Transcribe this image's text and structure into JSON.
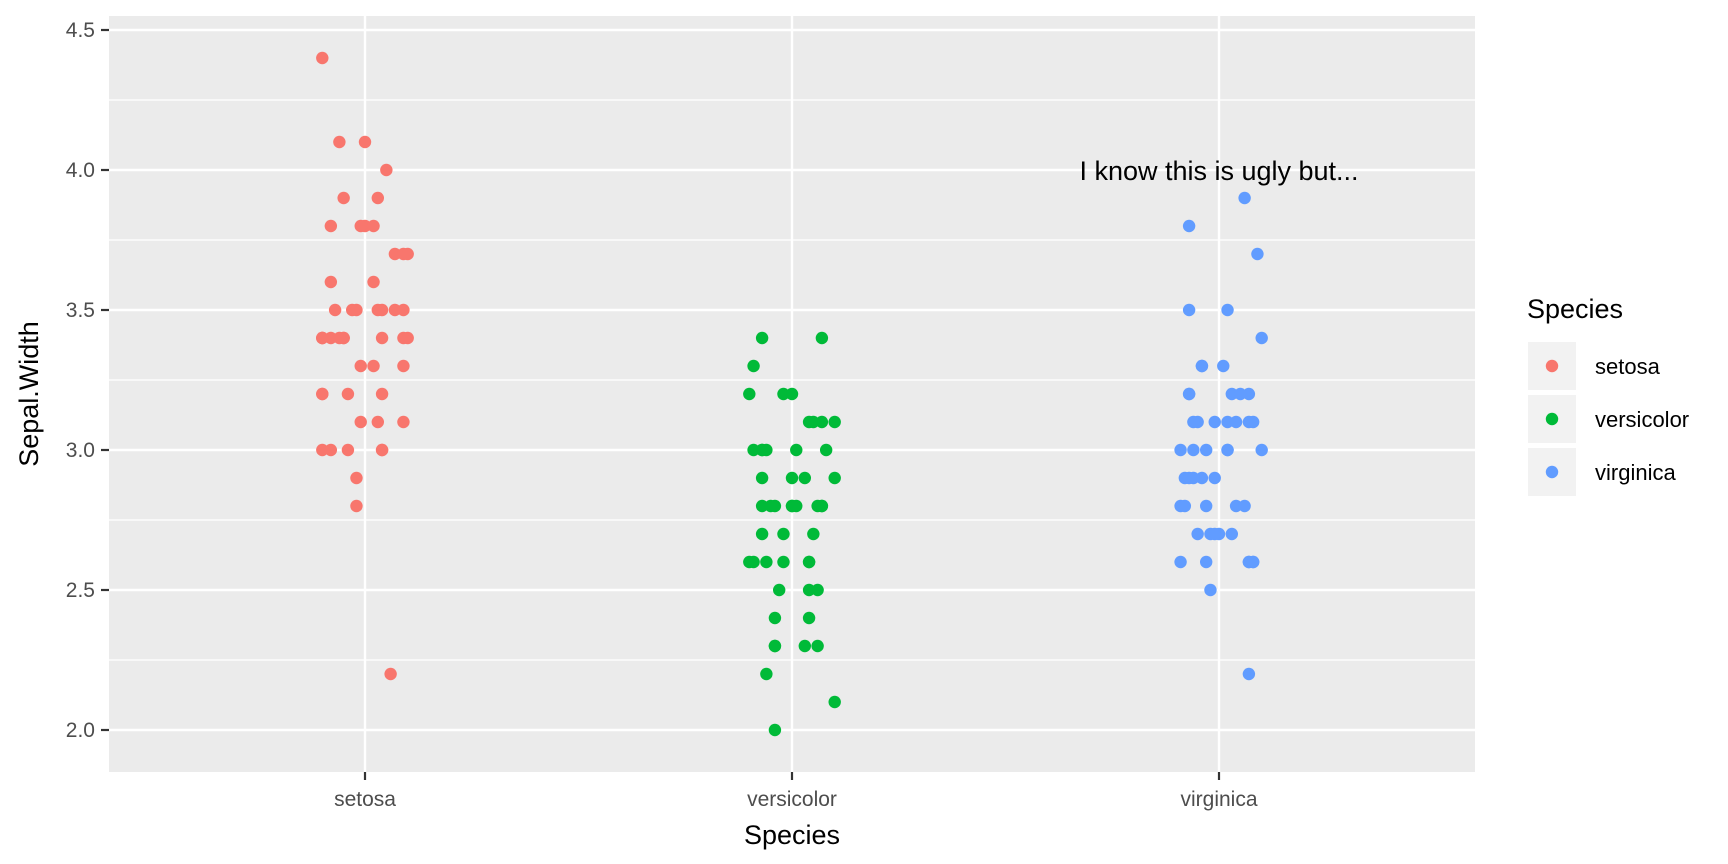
{
  "chart_data": {
    "type": "scatter",
    "subtype": "jitter",
    "title": "",
    "xlabel": "Species",
    "ylabel": "Sepal.Width",
    "categories": [
      "setosa",
      "versicolor",
      "virginica"
    ],
    "ylim": [
      1.85,
      4.55
    ],
    "yticks": [
      2.0,
      2.5,
      3.0,
      3.5,
      4.0,
      4.5
    ],
    "ytick_labels": [
      "2.0",
      "2.5",
      "3.0",
      "3.5",
      "4.0",
      "4.5"
    ],
    "grid": true,
    "legend": {
      "title": "Species",
      "position": "right"
    },
    "annotation": {
      "text": "I know this is ugly but...",
      "x": "virginica",
      "y": 4.0
    },
    "series": [
      {
        "name": "setosa",
        "color": "#F8766D",
        "points": [
          [
            -0.1,
            4.4
          ],
          [
            0.0,
            4.1
          ],
          [
            -0.06,
            4.1
          ],
          [
            0.05,
            4.0
          ],
          [
            -0.05,
            3.9
          ],
          [
            0.03,
            3.9
          ],
          [
            -0.08,
            3.8
          ],
          [
            0.0,
            3.8
          ],
          [
            0.02,
            3.8
          ],
          [
            -0.01,
            3.8
          ],
          [
            0.07,
            3.7
          ],
          [
            0.09,
            3.7
          ],
          [
            0.1,
            3.7
          ],
          [
            0.02,
            3.6
          ],
          [
            -0.08,
            3.6
          ],
          [
            0.07,
            3.5
          ],
          [
            -0.07,
            3.5
          ],
          [
            -0.03,
            3.5
          ],
          [
            0.03,
            3.5
          ],
          [
            0.09,
            3.5
          ],
          [
            0.04,
            3.5
          ],
          [
            0.09,
            3.4
          ],
          [
            0.1,
            3.4
          ],
          [
            -0.1,
            3.4
          ],
          [
            -0.08,
            3.4
          ],
          [
            -0.05,
            3.4
          ],
          [
            -0.02,
            3.5
          ],
          [
            -0.1,
            3.4
          ],
          [
            0.04,
            3.4
          ],
          [
            -0.05,
            3.4
          ],
          [
            -0.01,
            3.3
          ],
          [
            -0.1,
            3.4
          ],
          [
            0.02,
            3.3
          ],
          [
            0.09,
            3.3
          ],
          [
            -0.04,
            3.2
          ],
          [
            -0.1,
            3.2
          ],
          [
            -0.1,
            3.2
          ],
          [
            0.04,
            3.2
          ],
          [
            0.03,
            3.1
          ],
          [
            -0.01,
            3.1
          ],
          [
            0.09,
            3.1
          ],
          [
            -0.08,
            3.0
          ],
          [
            0.04,
            3.0
          ],
          [
            -0.1,
            3.0
          ],
          [
            -0.04,
            3.0
          ],
          [
            0.04,
            3.0
          ],
          [
            -0.02,
            2.9
          ],
          [
            -0.02,
            2.8
          ],
          [
            0.06,
            2.2
          ],
          [
            -0.06,
            3.4
          ]
        ]
      },
      {
        "name": "versicolor",
        "color": "#00BA38",
        "points": [
          [
            -0.07,
            3.4
          ],
          [
            0.07,
            3.4
          ],
          [
            -0.09,
            3.3
          ],
          [
            -0.02,
            3.2
          ],
          [
            0.0,
            3.2
          ],
          [
            -0.1,
            3.2
          ],
          [
            0.1,
            3.1
          ],
          [
            0.07,
            3.1
          ],
          [
            0.05,
            3.1
          ],
          [
            0.04,
            3.1
          ],
          [
            -0.07,
            3.0
          ],
          [
            -0.06,
            3.0
          ],
          [
            -0.07,
            3.0
          ],
          [
            0.01,
            3.0
          ],
          [
            0.08,
            3.0
          ],
          [
            -0.09,
            3.0
          ],
          [
            0.03,
            2.9
          ],
          [
            0.0,
            2.9
          ],
          [
            0.1,
            2.9
          ],
          [
            -0.07,
            2.9
          ],
          [
            -0.04,
            2.8
          ],
          [
            0.0,
            2.8
          ],
          [
            0.06,
            2.8
          ],
          [
            0.07,
            2.8
          ],
          [
            -0.07,
            2.8
          ],
          [
            -0.05,
            2.8
          ],
          [
            0.0,
            2.8
          ],
          [
            0.01,
            2.8
          ],
          [
            -0.07,
            2.7
          ],
          [
            -0.02,
            2.7
          ],
          [
            0.05,
            2.7
          ],
          [
            -0.09,
            2.6
          ],
          [
            -0.1,
            2.6
          ],
          [
            -0.06,
            2.6
          ],
          [
            -0.02,
            2.6
          ],
          [
            0.04,
            2.6
          ],
          [
            0.04,
            2.6
          ],
          [
            -0.03,
            2.5
          ],
          [
            0.04,
            2.5
          ],
          [
            0.06,
            2.5
          ],
          [
            -0.04,
            2.4
          ],
          [
            0.04,
            2.4
          ],
          [
            -0.04,
            2.3
          ],
          [
            -0.04,
            2.3
          ],
          [
            0.06,
            2.3
          ],
          [
            0.03,
            2.3
          ],
          [
            -0.06,
            2.2
          ],
          [
            0.1,
            2.1
          ],
          [
            -0.04,
            2.0
          ],
          [
            0.07,
            2.8
          ]
        ]
      },
      {
        "name": "virginica",
        "color": "#619CFF",
        "points": [
          [
            0.06,
            3.9
          ],
          [
            -0.07,
            3.8
          ],
          [
            0.09,
            3.7
          ],
          [
            -0.07,
            3.5
          ],
          [
            0.02,
            3.5
          ],
          [
            0.1,
            3.4
          ],
          [
            -0.04,
            3.3
          ],
          [
            -0.04,
            3.3
          ],
          [
            0.01,
            3.3
          ],
          [
            0.03,
            3.2
          ],
          [
            -0.07,
            3.2
          ],
          [
            -0.07,
            3.2
          ],
          [
            0.07,
            3.2
          ],
          [
            0.07,
            3.1
          ],
          [
            -0.01,
            3.1
          ],
          [
            -0.05,
            3.1
          ],
          [
            0.02,
            3.1
          ],
          [
            0.04,
            3.1
          ],
          [
            0.08,
            3.1
          ],
          [
            -0.06,
            3.1
          ],
          [
            -0.06,
            3.0
          ],
          [
            0.02,
            3.0
          ],
          [
            0.1,
            3.0
          ],
          [
            -0.09,
            3.0
          ],
          [
            -0.03,
            3.0
          ],
          [
            0.02,
            3.0
          ],
          [
            -0.04,
            2.9
          ],
          [
            -0.08,
            2.9
          ],
          [
            -0.01,
            2.9
          ],
          [
            0.04,
            2.8
          ],
          [
            0.06,
            2.8
          ],
          [
            -0.07,
            2.9
          ],
          [
            -0.06,
            2.9
          ],
          [
            -0.03,
            2.8
          ],
          [
            -0.09,
            2.8
          ],
          [
            -0.08,
            2.8
          ],
          [
            -0.05,
            2.7
          ],
          [
            -0.02,
            2.7
          ],
          [
            0.0,
            2.7
          ],
          [
            0.03,
            2.7
          ],
          [
            0.07,
            2.6
          ],
          [
            0.07,
            2.6
          ],
          [
            0.08,
            2.6
          ],
          [
            0.08,
            2.6
          ],
          [
            -0.09,
            2.6
          ],
          [
            -0.03,
            2.6
          ],
          [
            -0.02,
            2.5
          ],
          [
            0.07,
            2.2
          ],
          [
            -0.01,
            2.7
          ],
          [
            0.05,
            3.2
          ]
        ]
      }
    ]
  }
}
